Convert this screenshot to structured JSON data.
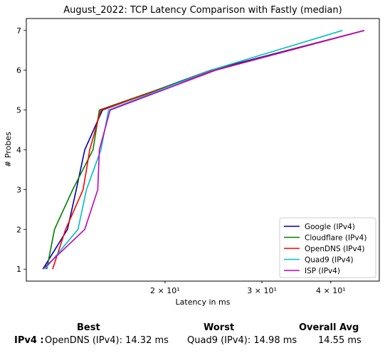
{
  "chart_data": {
    "type": "line",
    "title": "August_2022: TCP Latency Comparison with Fastly (median)",
    "xlabel": "Latency in ms",
    "ylabel": "# Probes",
    "xscale": "log",
    "xlim": [
      11.2,
      49
    ],
    "ylim": [
      0.7,
      7.3
    ],
    "x_ticks": [
      20,
      30,
      40
    ],
    "x_tick_labels": [
      "2 × 10¹",
      "3 × 10¹",
      "4 × 10¹"
    ],
    "y_ticks": [
      1,
      2,
      3,
      4,
      5,
      6,
      7
    ],
    "grid": false,
    "legend_position": "bottom-right",
    "series": [
      {
        "name": "Google (IPv4)",
        "color": "#0000aa",
        "x": [
          12.0,
          13.3,
          13.8,
          14.3,
          15.4,
          24.2,
          46.0
        ],
        "y": [
          1,
          2,
          3,
          4,
          5,
          6,
          7
        ]
      },
      {
        "name": "Cloudflare (IPv4)",
        "color": "#008000",
        "x": [
          12.2,
          12.6,
          13.6,
          14.8,
          15.2,
          24.5,
          46.0
        ],
        "y": [
          1,
          2,
          3,
          4,
          5,
          6,
          7
        ]
      },
      {
        "name": "OpenDNS (IPv4)",
        "color": "#ff0000",
        "x": [
          12.5,
          13.2,
          14.2,
          14.6,
          15.3,
          24.6,
          46.0
        ],
        "y": [
          1,
          2,
          3,
          4,
          5,
          6,
          7
        ]
      },
      {
        "name": "Quad9 (IPv4)",
        "color": "#00bfbf",
        "x": [
          12.1,
          13.9,
          14.4,
          15.3,
          15.8,
          24.2,
          42.0
        ],
        "y": [
          1,
          2,
          3,
          4,
          5,
          6,
          7
        ]
      },
      {
        "name": "ISP (IPv4)",
        "color": "#bf00bf",
        "x": [
          12.0,
          14.3,
          15.1,
          15.2,
          15.9,
          24.7,
          46.0
        ],
        "y": [
          1,
          2,
          3,
          4,
          5,
          6,
          7
        ]
      }
    ]
  },
  "summary": {
    "best_header": "Best",
    "worst_header": "Worst",
    "avg_header": "Overall Avg",
    "row_label": "IPv4 :",
    "best_value": "OpenDNS (IPv4): 14.32 ms",
    "worst_value": "Quad9 (IPv4): 14.98 ms",
    "avg_value": "14.55 ms"
  }
}
